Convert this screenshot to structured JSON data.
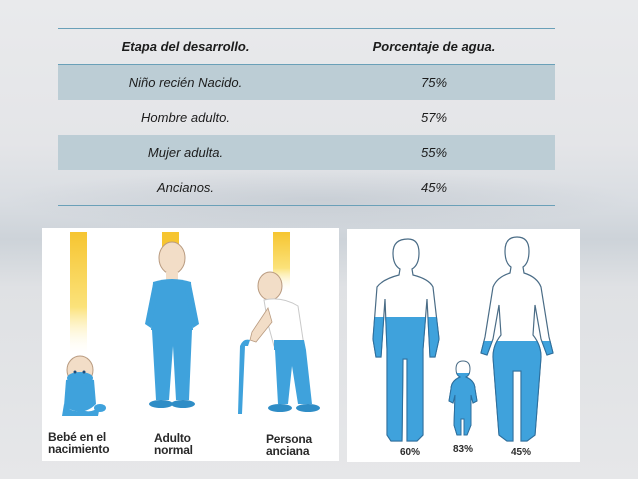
{
  "table": {
    "headers": [
      "Etapa del desarrollo.",
      "Porcentaje de agua."
    ],
    "rows": [
      {
        "stage": "Niño recién Nacido.",
        "percent": "75%"
      },
      {
        "stage": "Hombre adulto.",
        "percent": "57%"
      },
      {
        "stage": "Mujer adulta.",
        "percent": "55%"
      },
      {
        "stage": "Ancianos.",
        "percent": "45%"
      }
    ]
  },
  "left_figure": {
    "captions": [
      {
        "line1": "Bebé en el",
        "line2": "nacimiento"
      },
      {
        "line1": "Adulto",
        "line2": "normal"
      },
      {
        "line1": "Persona",
        "line2": "anciana"
      }
    ]
  },
  "right_figure": {
    "labels": [
      "60%",
      "83%",
      "45%"
    ]
  },
  "colors": {
    "water_blue": "#3fa2dc",
    "table_row_shade": "#bccdd5",
    "table_rule": "#6aa0b8",
    "beam_yellow": "#f6c531"
  }
}
